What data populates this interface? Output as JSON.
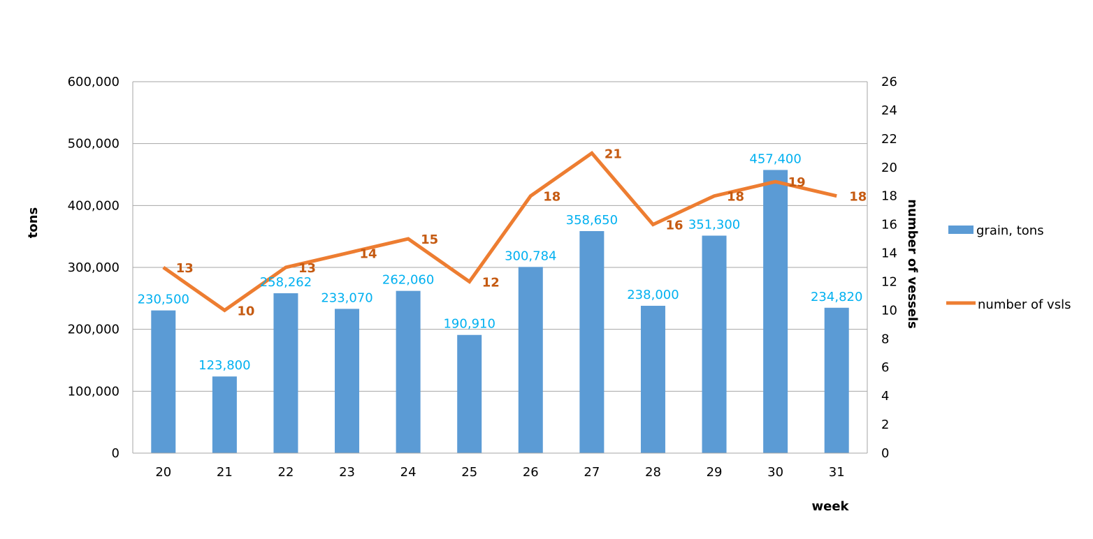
{
  "chart_data": {
    "type": "bar",
    "categories": [
      "20",
      "21",
      "22",
      "23",
      "24",
      "25",
      "26",
      "27",
      "28",
      "29",
      "30",
      "31"
    ],
    "series": [
      {
        "name": "grain, tons",
        "type": "bar",
        "axis": "left",
        "color": "#5B9BD5",
        "label_color": "#00B0F0",
        "values": [
          230500,
          123800,
          258262,
          233070,
          262060,
          190910,
          300784,
          358650,
          238000,
          351300,
          457400,
          234820
        ],
        "labels": [
          "230,500",
          "123,800",
          "258,262",
          "233,070",
          "262,060",
          "190,910",
          "300,784",
          "358,650",
          "238,000",
          "351,300",
          "457,400",
          "234,820"
        ]
      },
      {
        "name": "number of vsls",
        "type": "line",
        "axis": "right",
        "color": "#ED7D31",
        "label_color": "#C55A11",
        "values": [
          13,
          10,
          13,
          14,
          15,
          12,
          18,
          21,
          16,
          18,
          19,
          18
        ],
        "labels": [
          "13",
          "10",
          "13",
          "14",
          "15",
          "12",
          "18",
          "21",
          "16",
          "18",
          "19",
          "18"
        ]
      }
    ],
    "xlabel": "week",
    "ylabel": "tons",
    "y2label": "number of vessels",
    "ylim": [
      0,
      600000
    ],
    "y2lim": [
      0,
      26
    ],
    "yticks": [
      "0",
      "100,000",
      "200,000",
      "300,000",
      "400,000",
      "500,000",
      "600,000"
    ],
    "y2ticks": [
      "0",
      "2",
      "4",
      "6",
      "8",
      "10",
      "12",
      "14",
      "16",
      "18",
      "20",
      "22",
      "24",
      "26"
    ],
    "grid": true,
    "legend": "right"
  }
}
